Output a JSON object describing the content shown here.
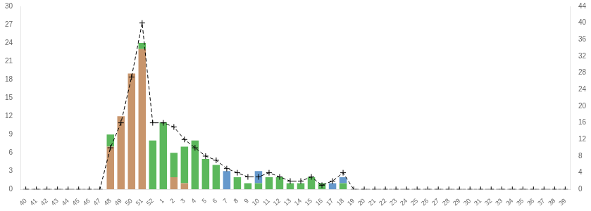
{
  "chart_data": {
    "type": "bar",
    "stacked": true,
    "grid": false,
    "categories": [
      "40",
      "41",
      "42",
      "43",
      "44",
      "45",
      "46",
      "47",
      "48",
      "49",
      "50",
      "51",
      "52",
      "1",
      "2",
      "3",
      "4",
      "5",
      "6",
      "7",
      "8",
      "9",
      "10",
      "11",
      "12",
      "13",
      "14",
      "15",
      "16",
      "17",
      "18",
      "19",
      "20",
      "21",
      "22",
      "23",
      "24",
      "25",
      "26",
      "27",
      "28",
      "29",
      "30",
      "31",
      "32",
      "33",
      "34",
      "35",
      "36",
      "37",
      "38",
      "39"
    ],
    "series": [
      {
        "color": "#c8956c",
        "values": [
          0,
          0,
          0,
          0,
          0,
          0,
          0,
          0,
          7,
          12,
          19,
          23,
          0,
          0,
          2,
          1,
          0,
          0,
          0,
          0,
          0,
          0,
          0,
          0,
          0,
          0,
          0,
          0,
          0,
          0,
          0,
          0,
          0,
          0,
          0,
          0,
          0,
          0,
          0,
          0,
          0,
          0,
          0,
          0,
          0,
          0,
          0,
          0,
          0,
          0,
          0,
          0
        ]
      },
      {
        "color": "#5cb85c",
        "values": [
          0,
          0,
          0,
          0,
          0,
          0,
          0,
          0,
          2,
          0,
          0,
          1,
          8,
          11,
          4,
          6,
          8,
          5,
          4,
          0,
          2,
          1,
          1,
          2,
          2,
          1,
          1,
          2,
          1,
          0,
          1,
          0,
          0,
          0,
          0,
          0,
          0,
          0,
          0,
          0,
          0,
          0,
          0,
          0,
          0,
          0,
          0,
          0,
          0,
          0,
          0,
          0
        ]
      },
      {
        "color": "#6699cc",
        "values": [
          0,
          0,
          0,
          0,
          0,
          0,
          0,
          0,
          0,
          0,
          0,
          0,
          0,
          0,
          0,
          0,
          0,
          0,
          0,
          3,
          0,
          0,
          2,
          0,
          0,
          0,
          0,
          0,
          0,
          1,
          1,
          0,
          0,
          0,
          0,
          0,
          0,
          0,
          0,
          0,
          0,
          0,
          0,
          0,
          0,
          0,
          0,
          0,
          0,
          0,
          0,
          0
        ]
      },
      {
        "type": "line",
        "axis": "y2",
        "color": "#000000",
        "line_style": "dashed",
        "marker": "plus",
        "values": [
          0,
          0,
          0,
          0,
          0,
          0,
          0,
          0,
          10,
          16,
          27,
          40,
          16,
          16,
          15,
          12,
          10,
          8,
          7,
          5,
          4,
          3,
          3,
          4,
          3,
          2,
          2,
          3,
          1,
          2,
          4,
          0,
          0,
          0,
          0,
          0,
          0,
          0,
          0,
          0,
          0,
          0,
          0,
          0,
          0,
          0,
          0,
          0,
          0,
          0,
          0,
          0
        ]
      }
    ],
    "ylim": [
      0,
      30
    ],
    "yticks": [
      0,
      3,
      6,
      9,
      12,
      15,
      18,
      21,
      24,
      27,
      30
    ],
    "y2lim": [
      0,
      44
    ],
    "y2ticks": [
      0,
      4,
      8,
      12,
      16,
      20,
      24,
      28,
      32,
      36,
      40,
      44
    ]
  }
}
